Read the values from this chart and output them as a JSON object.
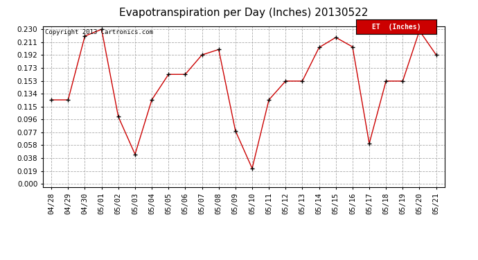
{
  "title": "Evapotranspiration per Day (Inches) 20130522",
  "copyright": "Copyright 2013 Cartronics.com",
  "legend_label": "ET  (Inches)",
  "legend_bg": "#cc0000",
  "legend_text_color": "#ffffff",
  "background_color": "#ffffff",
  "grid_color": "#aaaaaa",
  "line_color": "#cc0000",
  "marker_color": "#000000",
  "x_labels": [
    "04/28",
    "04/29",
    "04/30",
    "05/01",
    "05/02",
    "05/03",
    "05/04",
    "05/05",
    "05/06",
    "05/07",
    "05/08",
    "05/09",
    "05/10",
    "05/11",
    "05/12",
    "05/13",
    "05/14",
    "05/15",
    "05/16",
    "05/17",
    "05/18",
    "05/19",
    "05/20",
    "05/21"
  ],
  "y_values": [
    0.125,
    0.125,
    0.22,
    0.23,
    0.1,
    0.044,
    0.125,
    0.163,
    0.163,
    0.192,
    0.2,
    0.079,
    0.023,
    0.125,
    0.153,
    0.153,
    0.203,
    0.218,
    0.204,
    0.06,
    0.153,
    0.153,
    0.228,
    0.192
  ],
  "y_ticks": [
    0.0,
    0.019,
    0.038,
    0.058,
    0.077,
    0.096,
    0.115,
    0.134,
    0.153,
    0.173,
    0.192,
    0.211,
    0.23
  ],
  "ylim_min": -0.005,
  "ylim_max": 0.235,
  "title_fontsize": 11,
  "tick_fontsize": 7.5
}
